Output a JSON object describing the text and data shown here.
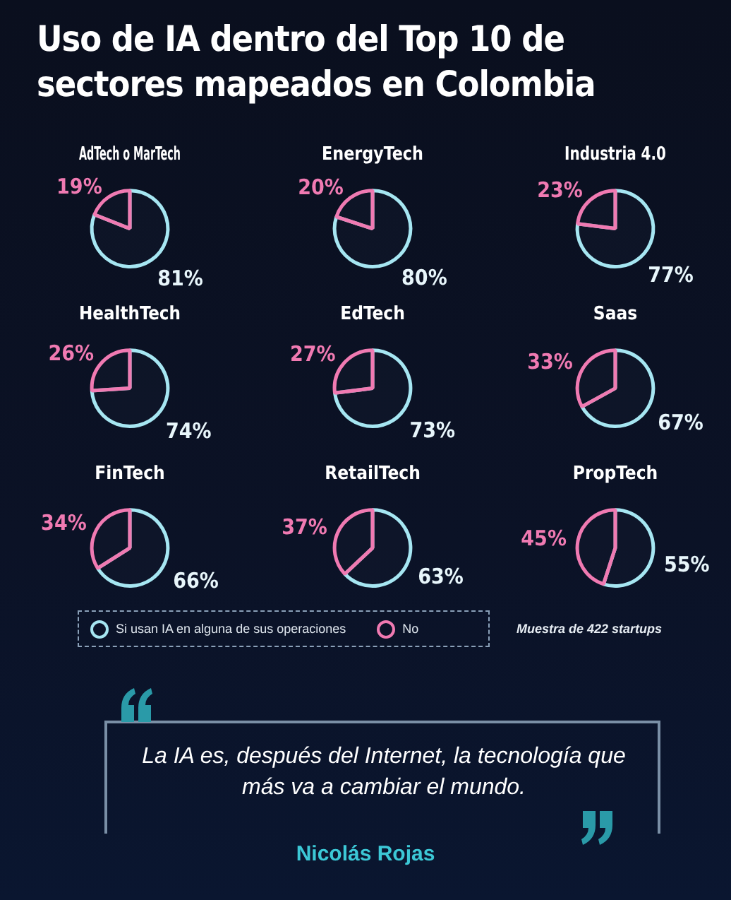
{
  "chart_data": [
    {
      "type": "other",
      "title": "Uso de IA dentro del Top 10 de sectores mapeados en Colombia",
      "annotations": [
        "Muestra de 422 startups",
        "La IA es, después del Internet, la tecnología que más va a cambiar el mundo.",
        "Nicolás Rojas"
      ]
    },
    {
      "type": "pie",
      "title": "AdTech o MarTech",
      "categories": [
        "Si usan IA en alguna de sus operaciones",
        "No"
      ],
      "values": [
        81,
        19
      ],
      "colors": [
        "#a6e6f2",
        "#f07ab2"
      ],
      "value_labels": [
        "81%",
        "19%"
      ],
      "legend": "bottom"
    },
    {
      "type": "pie",
      "title": "EnergyTech",
      "categories": [
        null,
        null
      ],
      "values": [
        80,
        20
      ],
      "colors": [
        "#a6e6f2",
        "#f07ab2"
      ],
      "value_labels": [
        "80%",
        "20%"
      ]
    },
    {
      "type": "pie",
      "title": "Industria 4.0",
      "categories": [
        null,
        null
      ],
      "values": [
        77,
        23
      ],
      "colors": [
        "#a6e6f2",
        "#f07ab2"
      ],
      "value_labels": [
        "77%",
        "23%"
      ]
    },
    {
      "type": "pie",
      "title": "HealthTech",
      "categories": [
        null,
        null
      ],
      "values": [
        74,
        26
      ],
      "colors": [
        "#a6e6f2",
        "#f07ab2"
      ],
      "value_labels": [
        "74%",
        "26%"
      ]
    },
    {
      "type": "pie",
      "title": "EdTech",
      "categories": [
        null,
        null
      ],
      "values": [
        73,
        27
      ],
      "colors": [
        "#a6e6f2",
        "#f07ab2"
      ],
      "value_labels": [
        "73%",
        "27%"
      ]
    },
    {
      "type": "pie",
      "title": "Saas",
      "categories": [
        null,
        null
      ],
      "values": [
        67,
        33
      ],
      "colors": [
        "#a6e6f2",
        "#f07ab2"
      ],
      "value_labels": [
        "67%",
        "33%"
      ]
    },
    {
      "type": "pie",
      "title": "FinTech",
      "categories": [
        null,
        null
      ],
      "values": [
        66,
        34
      ],
      "colors": [
        "#a6e6f2",
        "#f07ab2"
      ],
      "value_labels": [
        "66%",
        "34%"
      ]
    },
    {
      "type": "pie",
      "title": "RetailTech",
      "categories": [
        null,
        null
      ],
      "values": [
        63,
        37
      ],
      "colors": [
        "#a6e6f2",
        "#f07ab2"
      ],
      "value_labels": [
        "63%",
        "37%"
      ]
    },
    {
      "type": "pie",
      "title": "PropTech",
      "categories": [
        null,
        null
      ],
      "values": [
        55,
        45
      ],
      "colors": [
        "#a6e6f2",
        "#f07ab2"
      ],
      "value_labels": [
        "55%",
        "45%"
      ]
    }
  ]
}
